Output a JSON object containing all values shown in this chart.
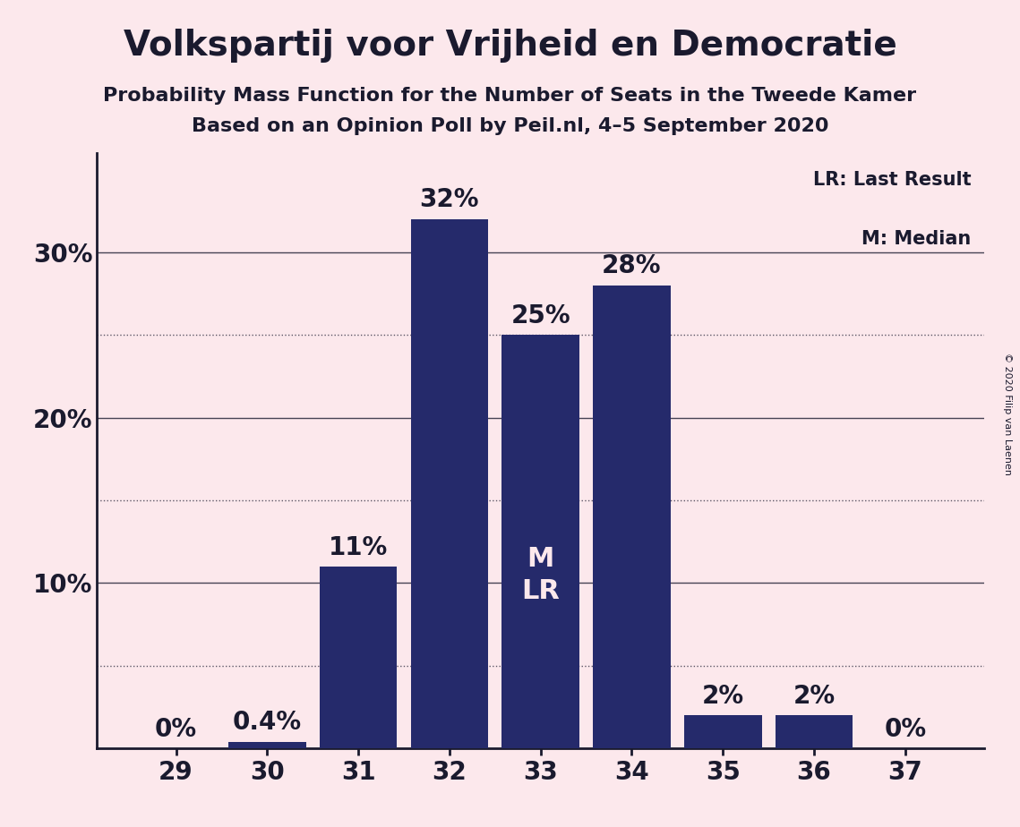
{
  "title": "Volkspartij voor Vrijheid en Democratie",
  "subtitle1": "Probability Mass Function for the Number of Seats in the Tweede Kamer",
  "subtitle2": "Based on an Opinion Poll by Peil.nl, 4–5 September 2020",
  "copyright": "© 2020 Filip van Laenen",
  "categories": [
    29,
    30,
    31,
    32,
    33,
    34,
    35,
    36,
    37
  ],
  "values": [
    0.0,
    0.4,
    11.0,
    32.0,
    25.0,
    28.0,
    2.0,
    2.0,
    0.0
  ],
  "bar_color": "#252a6b",
  "background_color": "#fce8ec",
  "label_color_outside": "#1a1a2e",
  "label_color_inside": "#fce8ec",
  "yticks_solid": [
    0,
    10,
    20,
    30
  ],
  "ytick_labels_solid": [
    "",
    "10%",
    "20%",
    "30%"
  ],
  "yticks_dotted": [
    5,
    15,
    25
  ],
  "ylim": [
    0,
    36
  ],
  "grid_color": "#1a1a2e",
  "median_bar_category": 33,
  "bar_labels": [
    "0%",
    "0.4%",
    "11%",
    "32%",
    "25%",
    "28%",
    "2%",
    "2%",
    "0%"
  ],
  "title_fontsize": 28,
  "subtitle_fontsize": 16,
  "tick_fontsize": 20,
  "bar_label_fontsize": 20,
  "legend_lr": "LR: Last Result",
  "legend_m": "M: Median"
}
